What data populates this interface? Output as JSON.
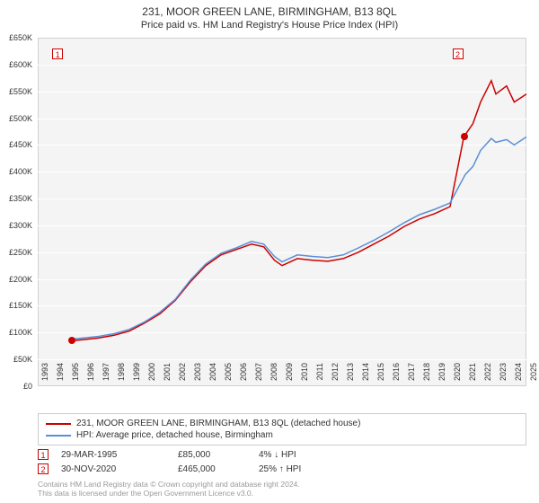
{
  "title": "231, MOOR GREEN LANE, BIRMINGHAM, B13 8QL",
  "subtitle": "Price paid vs. HM Land Registry's House Price Index (HPI)",
  "chart": {
    "type": "line",
    "background_color": "#f4f4f4",
    "grid_color": "#ffffff",
    "border_color": "#d0d0d0",
    "y_axis": {
      "min": 0,
      "max": 650000,
      "step": 50000,
      "labels": [
        "£0",
        "£50K",
        "£100K",
        "£150K",
        "£200K",
        "£250K",
        "£300K",
        "£350K",
        "£400K",
        "£450K",
        "£500K",
        "£550K",
        "£600K",
        "£650K"
      ],
      "fontsize": 9,
      "color": "#333333"
    },
    "x_axis": {
      "min": 1993,
      "max": 2025,
      "labels": [
        "1993",
        "1994",
        "1995",
        "1996",
        "1997",
        "1998",
        "1999",
        "2000",
        "2001",
        "2002",
        "2003",
        "2004",
        "2005",
        "2006",
        "2007",
        "2008",
        "2009",
        "2010",
        "2011",
        "2012",
        "2013",
        "2014",
        "2015",
        "2016",
        "2017",
        "2018",
        "2019",
        "2020",
        "2021",
        "2022",
        "2023",
        "2024",
        "2025"
      ],
      "fontsize": 9,
      "color": "#333333"
    },
    "series": [
      {
        "name": "231, MOOR GREEN LANE, BIRMINGHAM, B13 8QL (detached house)",
        "color": "#cc0000",
        "width": 1.5,
        "data": [
          [
            1995.25,
            85000
          ],
          [
            1996,
            87000
          ],
          [
            1997,
            90000
          ],
          [
            1998,
            95000
          ],
          [
            1999,
            103000
          ],
          [
            2000,
            118000
          ],
          [
            2001,
            135000
          ],
          [
            2002,
            160000
          ],
          [
            2003,
            195000
          ],
          [
            2004,
            225000
          ],
          [
            2005,
            245000
          ],
          [
            2006,
            255000
          ],
          [
            2007,
            265000
          ],
          [
            2007.8,
            260000
          ],
          [
            2008.5,
            235000
          ],
          [
            2009,
            225000
          ],
          [
            2010,
            238000
          ],
          [
            2011,
            235000
          ],
          [
            2012,
            233000
          ],
          [
            2013,
            238000
          ],
          [
            2014,
            250000
          ],
          [
            2015,
            265000
          ],
          [
            2016,
            280000
          ],
          [
            2017,
            298000
          ],
          [
            2018,
            312000
          ],
          [
            2019,
            322000
          ],
          [
            2020,
            335000
          ],
          [
            2020.9,
            465000
          ],
          [
            2021.5,
            490000
          ],
          [
            2022,
            530000
          ],
          [
            2022.7,
            570000
          ],
          [
            2023,
            545000
          ],
          [
            2023.7,
            560000
          ],
          [
            2024.2,
            530000
          ],
          [
            2025,
            545000
          ]
        ]
      },
      {
        "name": "HPI: Average price, detached house, Birmingham",
        "color": "#5b8fd6",
        "width": 1.5,
        "data": [
          [
            1995.25,
            88000
          ],
          [
            1996,
            90000
          ],
          [
            1997,
            93000
          ],
          [
            1998,
            98000
          ],
          [
            1999,
            106000
          ],
          [
            2000,
            120000
          ],
          [
            2001,
            138000
          ],
          [
            2002,
            162000
          ],
          [
            2003,
            198000
          ],
          [
            2004,
            228000
          ],
          [
            2005,
            248000
          ],
          [
            2006,
            258000
          ],
          [
            2007,
            270000
          ],
          [
            2007.8,
            265000
          ],
          [
            2008.5,
            242000
          ],
          [
            2009,
            232000
          ],
          [
            2010,
            245000
          ],
          [
            2011,
            242000
          ],
          [
            2012,
            240000
          ],
          [
            2013,
            245000
          ],
          [
            2014,
            258000
          ],
          [
            2015,
            272000
          ],
          [
            2016,
            288000
          ],
          [
            2017,
            305000
          ],
          [
            2018,
            320000
          ],
          [
            2019,
            330000
          ],
          [
            2020,
            342000
          ],
          [
            2021,
            395000
          ],
          [
            2021.5,
            410000
          ],
          [
            2022,
            440000
          ],
          [
            2022.7,
            462000
          ],
          [
            2023,
            455000
          ],
          [
            2023.7,
            460000
          ],
          [
            2024.2,
            450000
          ],
          [
            2025,
            465000
          ]
        ]
      }
    ],
    "markers": [
      {
        "id": "1",
        "x": 1995.25,
        "y": 85000,
        "color": "#cc0000",
        "label_x": 1994.3,
        "label_y": 620000
      },
      {
        "id": "2",
        "x": 2020.92,
        "y": 465000,
        "color": "#cc0000",
        "label_x": 2020.5,
        "label_y": 620000
      }
    ]
  },
  "legend": {
    "items": [
      {
        "label": "231, MOOR GREEN LANE, BIRMINGHAM, B13 8QL (detached house)",
        "color": "#cc0000"
      },
      {
        "label": "HPI: Average price, detached house, Birmingham",
        "color": "#5b8fd6"
      }
    ]
  },
  "transactions": [
    {
      "id": "1",
      "color": "#cc0000",
      "date": "29-MAR-1995",
      "price": "£85,000",
      "pct": "4% ↓ HPI"
    },
    {
      "id": "2",
      "color": "#cc0000",
      "date": "30-NOV-2020",
      "price": "£465,000",
      "pct": "25% ↑ HPI"
    }
  ],
  "footer_line1": "Contains HM Land Registry data © Crown copyright and database right 2024.",
  "footer_line2": "This data is licensed under the Open Government Licence v3.0."
}
